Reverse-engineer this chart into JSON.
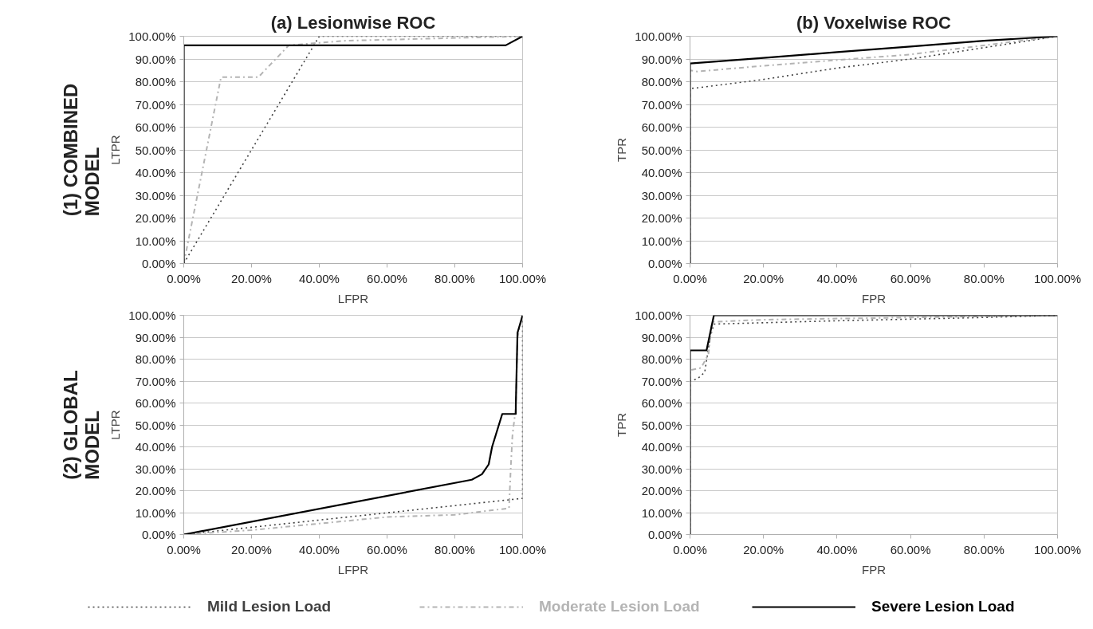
{
  "chart_data": [
    {
      "type": "line",
      "title": "(a) Lesionwise ROC",
      "xlabel": "LFPR",
      "ylabel": "LTPR",
      "annotations": [
        "(1) COMBINED\nMODEL"
      ],
      "grid": "y",
      "marker": "none",
      "xlim": [
        0,
        100
      ],
      "ylim": [
        0,
        100
      ],
      "xticks": [
        {
          "value": 0,
          "label": "0.00%"
        },
        {
          "value": 20,
          "label": "20.00%"
        },
        {
          "value": 40,
          "label": "40.00%"
        },
        {
          "value": 60,
          "label": "60.00%"
        },
        {
          "value": 80,
          "label": "80.00%"
        },
        {
          "value": 100,
          "label": "100.00%"
        }
      ],
      "yticks": [
        {
          "value": 0,
          "label": "0.00%"
        },
        {
          "value": 10,
          "label": "10.00%"
        },
        {
          "value": 20,
          "label": "20.00%"
        },
        {
          "value": 30,
          "label": "30.00%"
        },
        {
          "value": 40,
          "label": "40.00%"
        },
        {
          "value": 50,
          "label": "50.00%"
        },
        {
          "value": 60,
          "label": "60.00%"
        },
        {
          "value": 70,
          "label": "70.00%"
        },
        {
          "value": 80,
          "label": "80.00%"
        },
        {
          "value": 90,
          "label": "90.00%"
        },
        {
          "value": 100,
          "label": "100.00%"
        }
      ],
      "series": [
        {
          "color": "#404040",
          "line_style": "dotted",
          "x": [
            0,
            40,
            100
          ],
          "values": [
            0,
            100,
            100
          ]
        },
        {
          "color": "#b4b4b4",
          "line_style": "dashdot",
          "x": [
            0,
            11,
            22,
            31,
            47,
            100
          ],
          "values": [
            0,
            82,
            82,
            96,
            98,
            100
          ]
        },
        {
          "color": "#000000",
          "line_style": "solid",
          "x": [
            0,
            0,
            95,
            100
          ],
          "values": [
            0,
            96,
            96,
            100
          ]
        }
      ]
    },
    {
      "type": "line",
      "title": "(b) Voxelwise ROC",
      "xlabel": "FPR",
      "ylabel": "TPR",
      "grid": "y",
      "marker": "none",
      "xlim": [
        0,
        100
      ],
      "ylim": [
        0,
        100
      ],
      "xticks": [
        {
          "value": 0,
          "label": "0.00%"
        },
        {
          "value": 20,
          "label": "20.00%"
        },
        {
          "value": 40,
          "label": "40.00%"
        },
        {
          "value": 60,
          "label": "60.00%"
        },
        {
          "value": 80,
          "label": "80.00%"
        },
        {
          "value": 100,
          "label": "100.00%"
        }
      ],
      "yticks": [
        {
          "value": 0,
          "label": "0.00%"
        },
        {
          "value": 10,
          "label": "10.00%"
        },
        {
          "value": 20,
          "label": "20.00%"
        },
        {
          "value": 30,
          "label": "30.00%"
        },
        {
          "value": 40,
          "label": "40.00%"
        },
        {
          "value": 50,
          "label": "50.00%"
        },
        {
          "value": 60,
          "label": "60.00%"
        },
        {
          "value": 70,
          "label": "70.00%"
        },
        {
          "value": 80,
          "label": "80.00%"
        },
        {
          "value": 90,
          "label": "90.00%"
        },
        {
          "value": 100,
          "label": "100.00%"
        }
      ],
      "series": [
        {
          "color": "#404040",
          "line_style": "dotted",
          "x": [
            0,
            0,
            3,
            20,
            40,
            60,
            80,
            100
          ],
          "values": [
            0,
            77,
            77.5,
            81,
            86,
            90,
            95,
            100
          ]
        },
        {
          "color": "#b4b4b4",
          "line_style": "dashdot",
          "x": [
            0,
            0,
            2,
            20,
            60,
            100
          ],
          "values": [
            0,
            85,
            84.5,
            87,
            92,
            100
          ]
        },
        {
          "color": "#000000",
          "line_style": "solid",
          "x": [
            0,
            0,
            20,
            40,
            60,
            80,
            100
          ],
          "values": [
            0,
            88,
            90.5,
            93,
            95.5,
            98,
            100
          ]
        }
      ]
    },
    {
      "type": "line",
      "xlabel": "LFPR",
      "ylabel": "LTPR",
      "annotations": [
        "(2) GLOBAL\nMODEL"
      ],
      "grid": "y",
      "marker": "none",
      "xlim": [
        0,
        100
      ],
      "ylim": [
        0,
        100
      ],
      "xticks": [
        {
          "value": 0,
          "label": "0.00%"
        },
        {
          "value": 20,
          "label": "20.00%"
        },
        {
          "value": 40,
          "label": "40.00%"
        },
        {
          "value": 60,
          "label": "60.00%"
        },
        {
          "value": 80,
          "label": "80.00%"
        },
        {
          "value": 100,
          "label": "100.00%"
        }
      ],
      "yticks": [
        {
          "value": 0,
          "label": "0.00%"
        },
        {
          "value": 10,
          "label": "10.00%"
        },
        {
          "value": 20,
          "label": "20.00%"
        },
        {
          "value": 30,
          "label": "30.00%"
        },
        {
          "value": 40,
          "label": "40.00%"
        },
        {
          "value": 50,
          "label": "50.00%"
        },
        {
          "value": 60,
          "label": "60.00%"
        },
        {
          "value": 70,
          "label": "70.00%"
        },
        {
          "value": 80,
          "label": "80.00%"
        },
        {
          "value": 90,
          "label": "90.00%"
        },
        {
          "value": 100,
          "label": "100.00%"
        }
      ],
      "series": [
        {
          "color": "#404040",
          "line_style": "dotted",
          "x": [
            0,
            100,
            100
          ],
          "values": [
            0,
            16.5,
            100
          ]
        },
        {
          "color": "#b4b4b4",
          "line_style": "dashdot",
          "x": [
            0,
            20,
            40,
            60,
            80,
            96,
            96.5,
            97,
            98,
            98.5,
            100
          ],
          "values": [
            0,
            2,
            5,
            8,
            9,
            12,
            30,
            45,
            58,
            90,
            100
          ]
        },
        {
          "color": "#000000",
          "line_style": "solid",
          "x": [
            0,
            85,
            88,
            90,
            90.5,
            91,
            93,
            94,
            98,
            98,
            98.5,
            100
          ],
          "values": [
            0,
            25,
            27.5,
            32,
            36,
            40,
            50,
            55,
            55,
            59,
            92,
            100
          ]
        }
      ]
    },
    {
      "type": "line",
      "xlabel": "FPR",
      "ylabel": "TPR",
      "grid": "y",
      "marker": "none",
      "legend": "bottom",
      "xlim": [
        0,
        100
      ],
      "ylim": [
        0,
        100
      ],
      "xticks": [
        {
          "value": 0,
          "label": "0.00%"
        },
        {
          "value": 20,
          "label": "20.00%"
        },
        {
          "value": 40,
          "label": "40.00%"
        },
        {
          "value": 60,
          "label": "60.00%"
        },
        {
          "value": 80,
          "label": "80.00%"
        },
        {
          "value": 100,
          "label": "100.00%"
        }
      ],
      "yticks": [
        {
          "value": 0,
          "label": "0.00%"
        },
        {
          "value": 10,
          "label": "10.00%"
        },
        {
          "value": 20,
          "label": "20.00%"
        },
        {
          "value": 30,
          "label": "30.00%"
        },
        {
          "value": 40,
          "label": "40.00%"
        },
        {
          "value": 50,
          "label": "50.00%"
        },
        {
          "value": 60,
          "label": "60.00%"
        },
        {
          "value": 70,
          "label": "70.00%"
        },
        {
          "value": 80,
          "label": "80.00%"
        },
        {
          "value": 90,
          "label": "90.00%"
        },
        {
          "value": 100,
          "label": "100.00%"
        }
      ],
      "series": [
        {
          "name": "Mild Lesion Load",
          "color": "#404040",
          "line_style": "dotted",
          "x": [
            0,
            0,
            2,
            4,
            5.5,
            6.5,
            40,
            80,
            100
          ],
          "values": [
            0,
            70,
            71,
            74,
            90,
            96,
            97.5,
            99,
            100
          ]
        },
        {
          "name": "Moderate Lesion Load",
          "color": "#b4b4b4",
          "line_style": "dashdot",
          "x": [
            0,
            0,
            3,
            5,
            6,
            20,
            100
          ],
          "values": [
            0,
            75,
            76,
            82,
            97,
            98,
            100
          ]
        },
        {
          "name": "Severe Lesion Load",
          "color": "#000000",
          "line_style": "solid",
          "x": [
            0,
            0,
            4.5,
            6.5,
            100
          ],
          "values": [
            0,
            84,
            84,
            100,
            100
          ]
        }
      ]
    }
  ]
}
